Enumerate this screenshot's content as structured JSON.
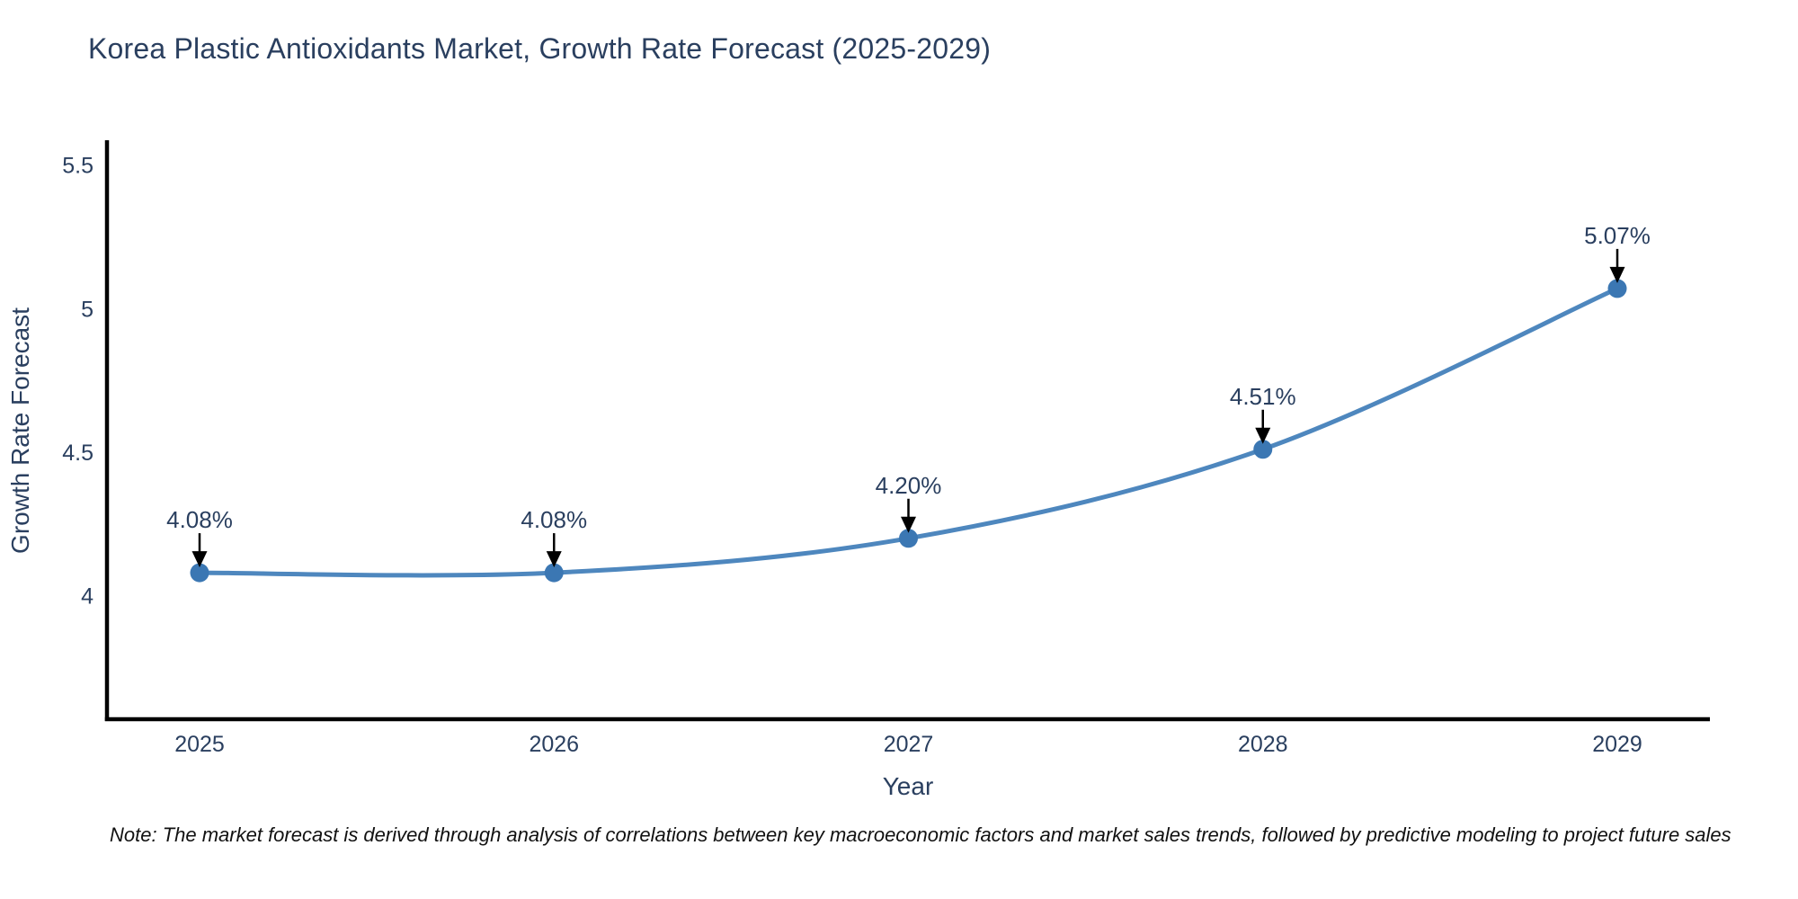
{
  "title": "Korea Plastic Antioxidants Market, Growth Rate Forecast (2025-2029)",
  "note": "Note: The market forecast is derived through analysis of correlations between key macroeconomic factors and market sales trends, followed by predictive modeling to project future sales",
  "chart_data": {
    "type": "line",
    "title": "Korea Plastic Antioxidants Market, Growth Rate Forecast (2025-2029)",
    "xlabel": "Year",
    "ylabel": "Growth Rate Forecast",
    "categories": [
      "2025",
      "2026",
      "2027",
      "2028",
      "2029"
    ],
    "series": [
      {
        "name": "Growth Rate Forecast",
        "values": [
          4.08,
          4.08,
          4.2,
          4.51,
          5.07
        ],
        "point_labels": [
          "4.08%",
          "4.08%",
          "4.20%",
          "4.51%",
          "5.07%"
        ]
      }
    ],
    "line_shape": "spline",
    "markers": true,
    "annotations_arrows": true,
    "grid": false,
    "legend": "none",
    "yticks": [
      4,
      4.5,
      5,
      5.5
    ],
    "ytick_labels": [
      "4",
      "4.5",
      "5",
      "5.5"
    ],
    "ylim": [
      3.57,
      5.58
    ],
    "colors": {
      "line": "#4e87be",
      "marker": "#3b77b3",
      "axis": "#000000",
      "text": "#2a3f5f",
      "arrow": "#000000",
      "note": "#111111",
      "background": "#ffffff"
    }
  }
}
